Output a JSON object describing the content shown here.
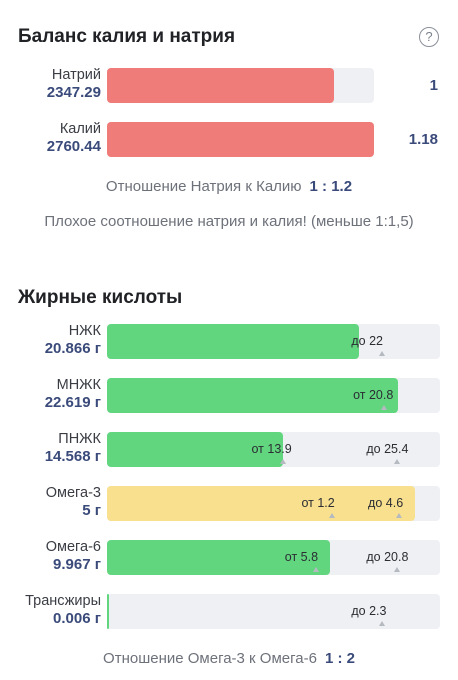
{
  "balance": {
    "title": "Баланс калия и натрия",
    "help_icon": "question-circle-icon",
    "sodium": {
      "label": "Натрий",
      "value": "2347.29",
      "ratio": "1",
      "fill": 0.85
    },
    "potassium": {
      "label": "Калий",
      "value": "2760.44",
      "ratio": "1.18",
      "fill": 1.0
    },
    "ratio_label": "Отношение Натрия к Калию",
    "ratio_value": "1 : 1.2",
    "warning": "Плохое соотношение натрия и калия! (меньше 1:1,5)"
  },
  "fatty_acids": {
    "title": "Жирные кислоты",
    "rows": [
      {
        "label": "НЖК",
        "value": "20.866 г",
        "fill": 0.758,
        "color": "green",
        "markers": [
          {
            "text": "до 22",
            "pos": 0.8
          }
        ]
      },
      {
        "label": "МНЖК",
        "value": "22.619 г",
        "fill": 0.875,
        "color": "green",
        "markers": [
          {
            "text": "от 20.8",
            "pos": 0.805
          }
        ]
      },
      {
        "label": "ПНЖК",
        "value": "14.568 г",
        "fill": 0.53,
        "color": "green",
        "markers": [
          {
            "text": "от 13.9",
            "pos": 0.5
          },
          {
            "text": "до 25.4",
            "pos": 0.845
          }
        ]
      },
      {
        "label": "Омега-3",
        "value": "5 г",
        "fill": 0.925,
        "color": "yellow",
        "markers": [
          {
            "text": "от 1.2",
            "pos": 0.65
          },
          {
            "text": "до 4.6",
            "pos": 0.85
          }
        ]
      },
      {
        "label": "Омега-6",
        "value": "9.967 г",
        "fill": 0.67,
        "color": "green",
        "markers": [
          {
            "text": "от 5.8",
            "pos": 0.6
          },
          {
            "text": "до 20.8",
            "pos": 0.845
          }
        ]
      },
      {
        "label": "Трансжиры",
        "value": "0.006 г",
        "fill": 0.004,
        "color": "green",
        "markers": [
          {
            "text": "до 2.3",
            "pos": 0.8
          }
        ]
      }
    ],
    "ratio_label": "Отношение Омега-3 к Омега-6",
    "ratio_value": "1 : 2"
  }
}
